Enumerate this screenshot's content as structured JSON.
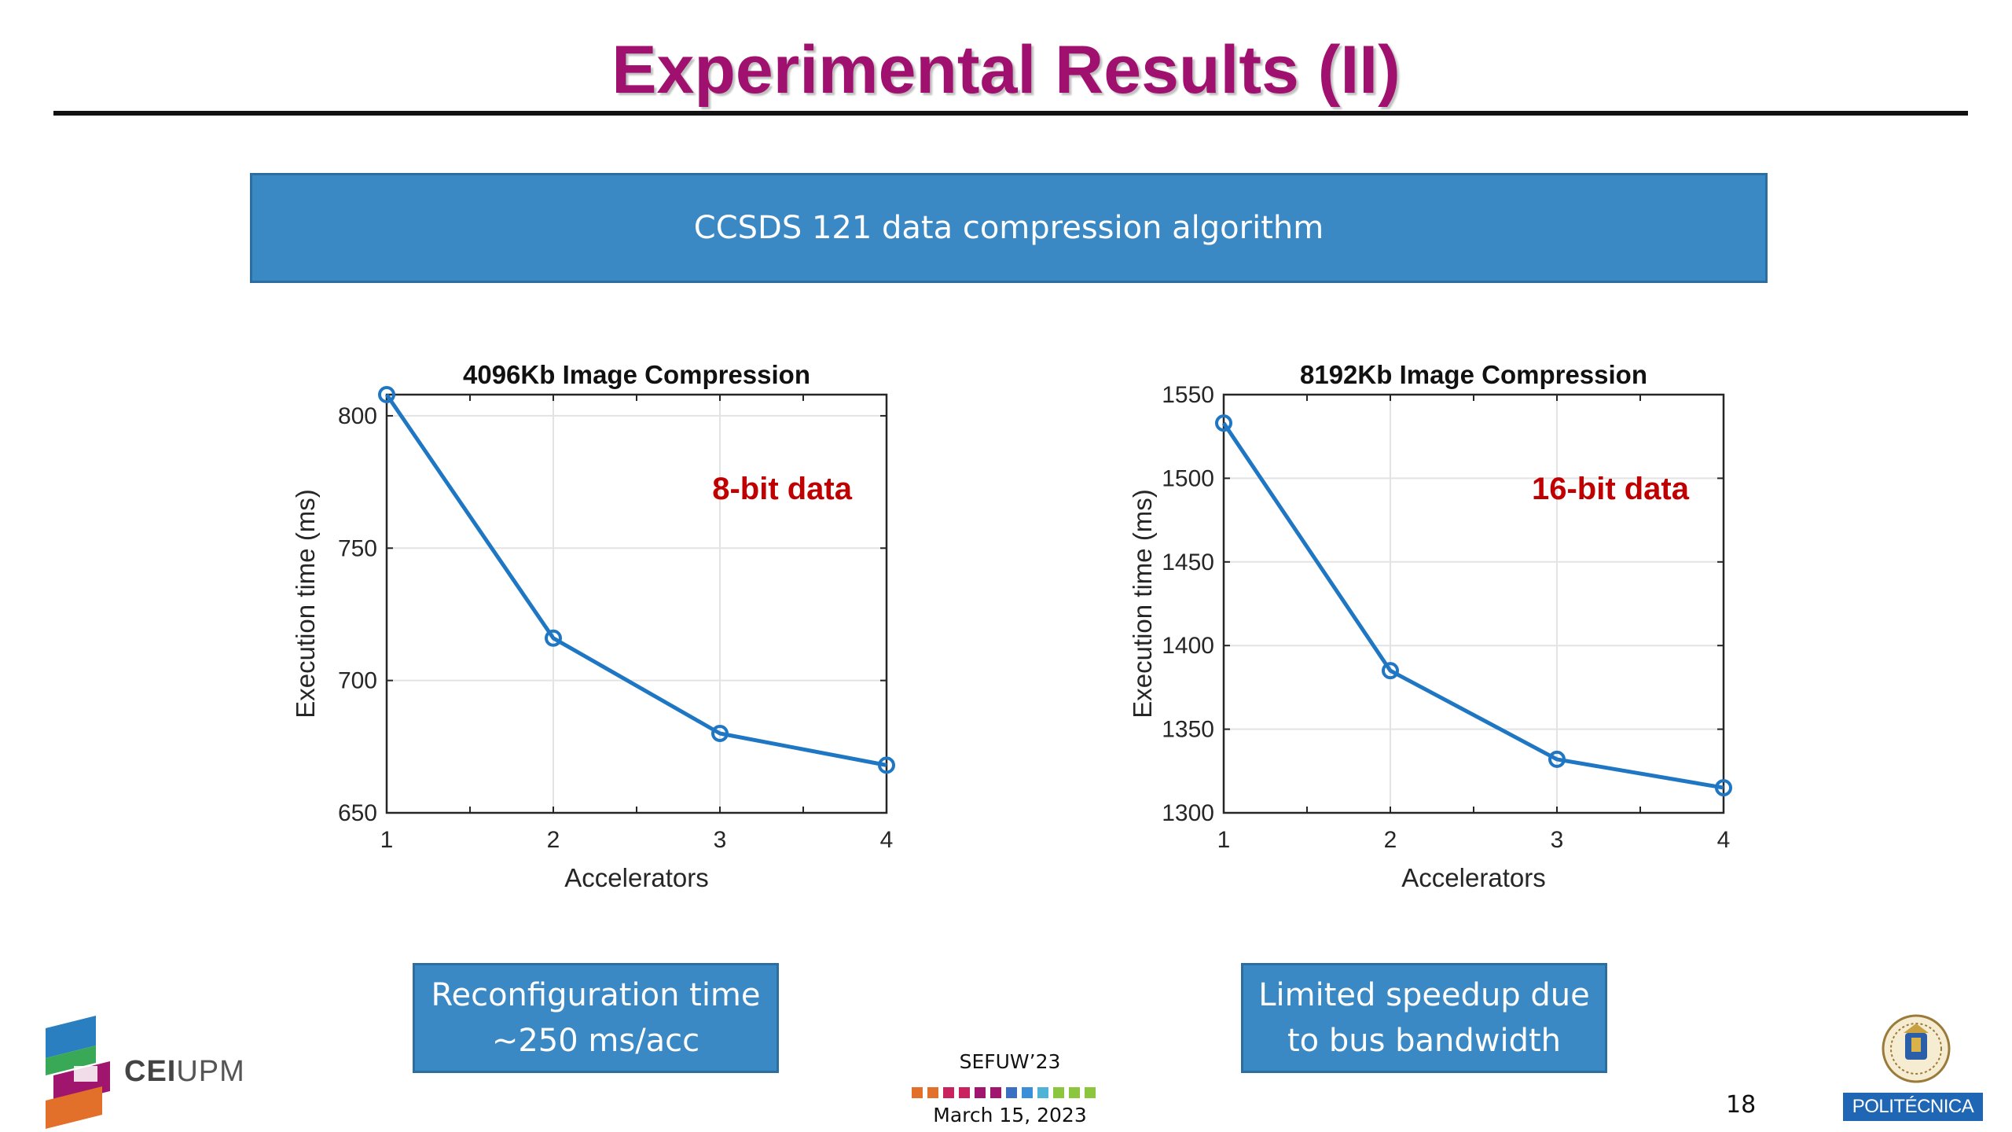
{
  "slide": {
    "title": "Experimental Results (II)",
    "banner": "CCSDS 121 data compression algorithm",
    "callout_left": [
      "Reconfiguration time",
      "~250 ms/acc"
    ],
    "callout_right": [
      "Limited speedup due",
      "to bus bandwidth"
    ],
    "footer": {
      "conference": "SEFUW’23",
      "date": "March 15, 2023",
      "page_number": "18",
      "dot_colors": [
        "#e2702a",
        "#e2702a",
        "#c8235f",
        "#c8235f",
        "#a0166e",
        "#a0166e",
        "#3a6fc4",
        "#3a8fd8",
        "#4fb3d8",
        "#8cc63f",
        "#8cc63f",
        "#8cc63f"
      ]
    },
    "logos": {
      "cei_bold": "CEI",
      "cei_light": "UPM",
      "upm": "POLITÉCNICA"
    }
  },
  "chart_data": [
    {
      "type": "line",
      "title": "4096Kb Image Compression",
      "xlabel": "Accelerators",
      "ylabel": "Execution time (ms)",
      "x": [
        1,
        2,
        3,
        4
      ],
      "series": [
        {
          "values": [
            808,
            716,
            680,
            668
          ]
        }
      ],
      "xlim": [
        1,
        4
      ],
      "ylim": [
        650,
        808
      ],
      "xticks": [
        1,
        2,
        3,
        4
      ],
      "yticks": [
        650,
        700,
        750,
        800
      ],
      "grid": true,
      "annotation": "8-bit data",
      "line_color": "#1f77c4",
      "annotation_color": "#c00000"
    },
    {
      "type": "line",
      "title": "8192Kb Image Compression",
      "xlabel": "Accelerators",
      "ylabel": "Execution time (ms)",
      "x": [
        1,
        2,
        3,
        4
      ],
      "series": [
        {
          "values": [
            1533,
            1385,
            1332,
            1315
          ]
        }
      ],
      "xlim": [
        1,
        4
      ],
      "ylim": [
        1300,
        1550
      ],
      "xticks": [
        1,
        2,
        3,
        4
      ],
      "yticks": [
        1300,
        1350,
        1400,
        1450,
        1500,
        1550
      ],
      "grid": true,
      "annotation": "16-bit data",
      "line_color": "#1f77c4",
      "annotation_color": "#c00000"
    }
  ]
}
